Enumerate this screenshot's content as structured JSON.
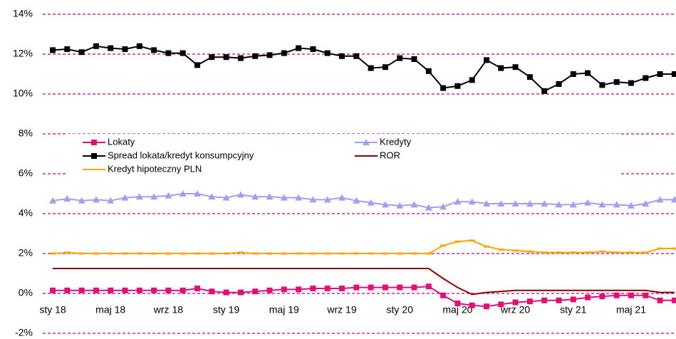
{
  "chart_data": {
    "type": "line",
    "categories": [
      "sty 18",
      null,
      null,
      null,
      "maj 18",
      null,
      null,
      null,
      "wrz 18",
      null,
      null,
      null,
      "sty 19",
      null,
      null,
      null,
      "maj 19",
      null,
      null,
      null,
      "wrz 19",
      null,
      null,
      null,
      "sty 20",
      null,
      null,
      null,
      "maj 20",
      null,
      null,
      null,
      "wrz 20",
      null,
      null,
      null,
      "sty 21",
      null,
      null,
      null,
      "maj 21",
      null,
      null,
      null
    ],
    "ylim": [
      -2,
      14
    ],
    "yticks": [
      {
        "value": -2,
        "label": "-2%"
      },
      {
        "value": 0,
        "label": "0%"
      },
      {
        "value": 2,
        "label": "2%"
      },
      {
        "value": 4,
        "label": "4%"
      },
      {
        "value": 6,
        "label": "6%"
      },
      {
        "value": 8,
        "label": "8%"
      },
      {
        "value": 10,
        "label": "10%"
      },
      {
        "value": 12,
        "label": "12%"
      },
      {
        "value": 14,
        "label": "14%"
      }
    ],
    "grid": true,
    "grid_color": "#c0007a",
    "series": [
      {
        "name": "Lokaty",
        "color": "#e0107a",
        "marker": "square",
        "values": [
          0.15,
          0.15,
          0.15,
          0.15,
          0.15,
          0.15,
          0.15,
          0.15,
          0.15,
          0.15,
          0.25,
          0.1,
          0.05,
          0.05,
          0.1,
          0.15,
          0.2,
          0.2,
          0.25,
          0.25,
          0.25,
          0.3,
          0.3,
          0.3,
          0.3,
          0.3,
          0.35,
          -0.1,
          -0.5,
          -0.6,
          -0.65,
          -0.55,
          -0.45,
          -0.4,
          -0.35,
          -0.35,
          -0.3,
          -0.2,
          -0.15,
          -0.1,
          -0.1,
          -0.1,
          -0.35,
          -0.35
        ]
      },
      {
        "name": "Kredyty",
        "color": "#a0a0f0",
        "marker": "triangle",
        "values": [
          4.65,
          4.75,
          4.65,
          4.7,
          4.65,
          4.8,
          4.85,
          4.85,
          4.9,
          5.0,
          5.0,
          4.85,
          4.8,
          4.95,
          4.85,
          4.85,
          4.8,
          4.8,
          4.7,
          4.7,
          4.8,
          4.65,
          4.55,
          4.45,
          4.4,
          4.45,
          4.3,
          4.35,
          4.6,
          4.6,
          4.5,
          4.5,
          4.5,
          4.5,
          4.5,
          4.45,
          4.45,
          4.55,
          4.45,
          4.45,
          4.4,
          4.5,
          4.7,
          4.7
        ]
      },
      {
        "name": "Spread lokata/kredyt konsumpcyjny",
        "color": "#000000",
        "marker": "square",
        "values": [
          12.2,
          12.25,
          12.1,
          12.4,
          12.3,
          12.25,
          12.4,
          12.2,
          12.05,
          12.05,
          11.45,
          11.85,
          11.85,
          11.8,
          11.9,
          11.95,
          12.05,
          12.3,
          12.25,
          12.05,
          11.9,
          11.9,
          11.3,
          11.35,
          11.8,
          11.75,
          11.15,
          10.3,
          10.4,
          10.7,
          11.7,
          11.3,
          11.35,
          10.85,
          10.15,
          10.5,
          11.0,
          11.05,
          10.45,
          10.6,
          10.55,
          10.8,
          11.0,
          11.0
        ]
      },
      {
        "name": "ROR",
        "color": "#8b0000",
        "marker": "none",
        "values": [
          1.25,
          1.25,
          1.25,
          1.25,
          1.25,
          1.25,
          1.25,
          1.25,
          1.25,
          1.25,
          1.25,
          1.25,
          1.25,
          1.25,
          1.25,
          1.25,
          1.25,
          1.25,
          1.25,
          1.25,
          1.25,
          1.25,
          1.25,
          1.25,
          1.25,
          1.25,
          1.25,
          0.75,
          0.3,
          -0.05,
          0.05,
          0.1,
          0.15,
          0.15,
          0.15,
          0.15,
          0.15,
          0.15,
          0.15,
          0.15,
          0.15,
          0.15,
          0.05,
          0.05
        ]
      },
      {
        "name": "Kredyt hipoteczny PLN",
        "color": "#ffa500",
        "marker": "dash",
        "values": [
          2.0,
          2.05,
          2.0,
          2.0,
          2.0,
          2.0,
          2.0,
          2.0,
          2.0,
          2.0,
          2.0,
          2.0,
          2.0,
          2.05,
          2.0,
          2.0,
          2.0,
          2.0,
          2.0,
          2.0,
          2.0,
          2.0,
          2.0,
          2.0,
          2.0,
          2.0,
          2.0,
          2.4,
          2.6,
          2.65,
          2.35,
          2.2,
          2.15,
          2.1,
          2.05,
          2.05,
          2.05,
          2.05,
          2.1,
          2.05,
          2.05,
          2.05,
          2.25,
          2.25
        ]
      }
    ]
  }
}
